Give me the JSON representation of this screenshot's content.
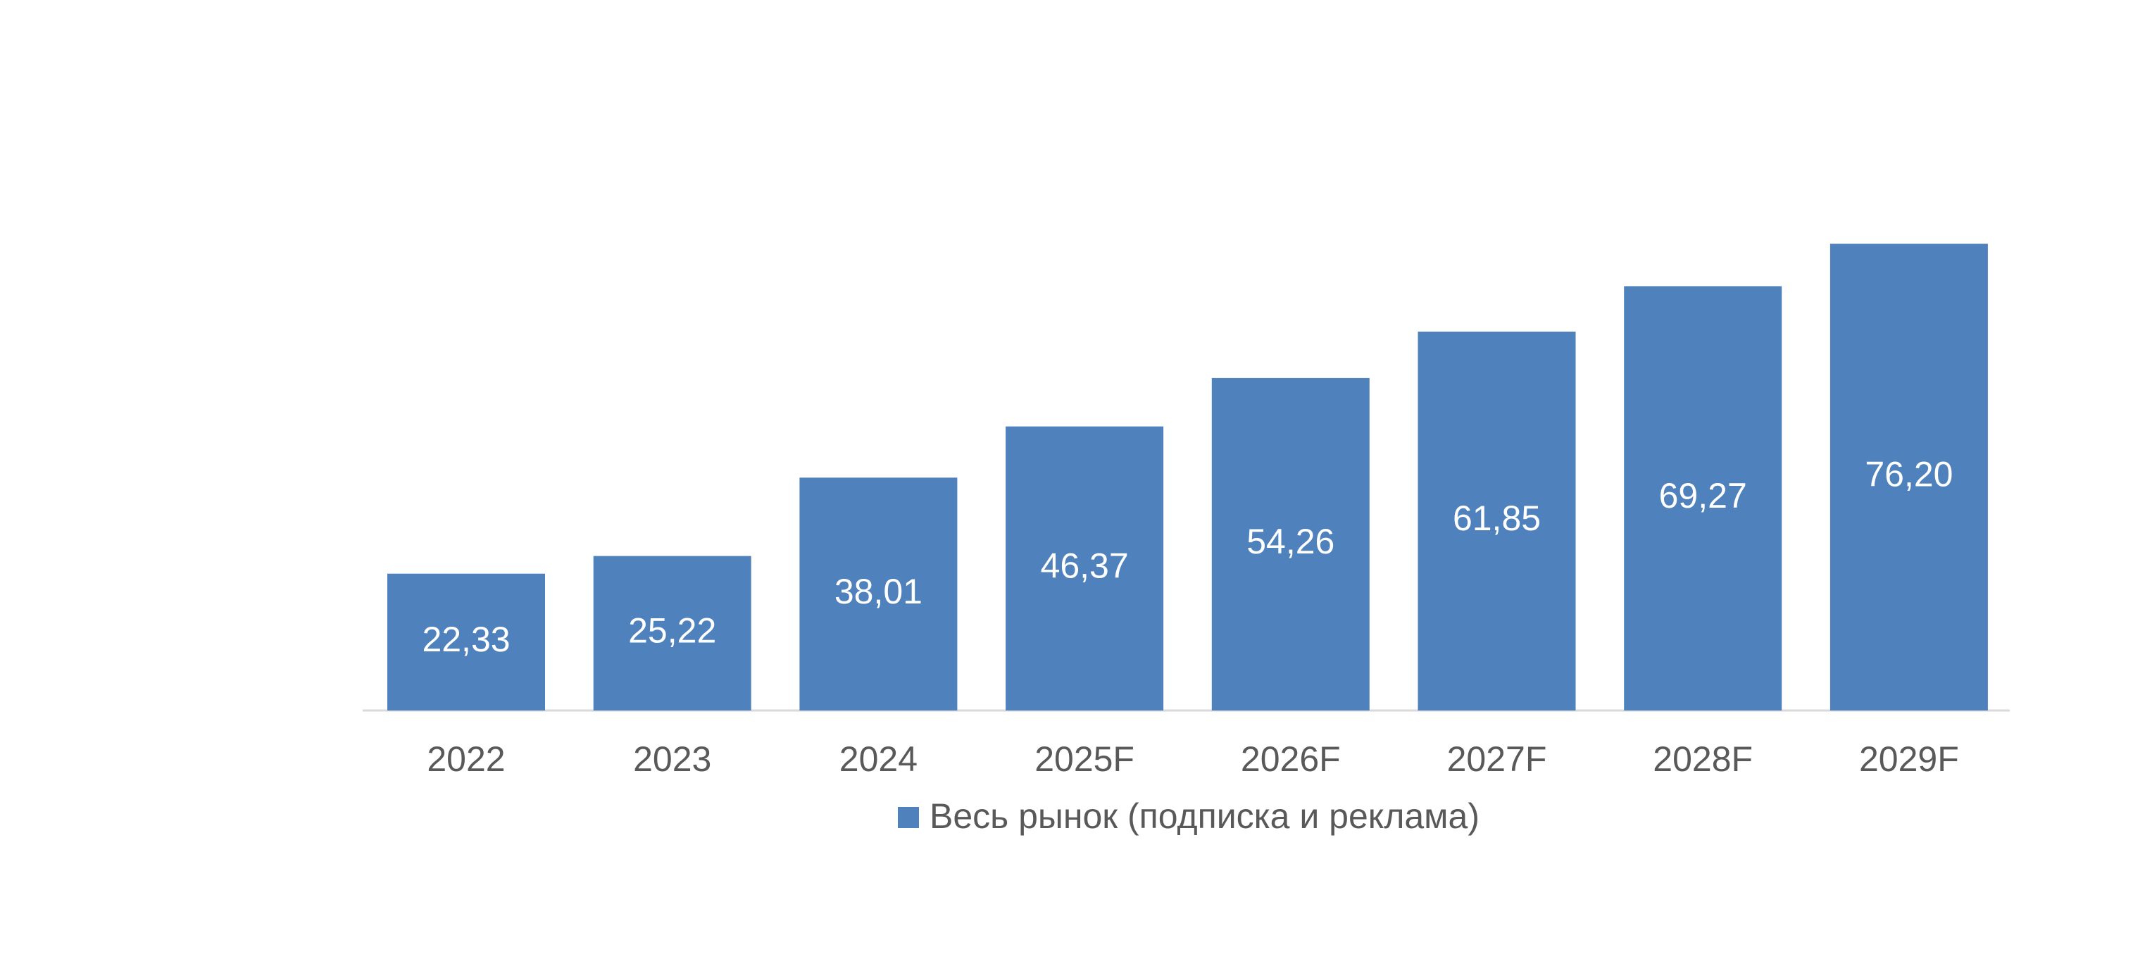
{
  "chart_data": {
    "type": "bar",
    "categories": [
      "2022",
      "2023",
      "2024",
      "2025F",
      "2026F",
      "2027F",
      "2028F",
      "2029F"
    ],
    "series": [
      {
        "name": "Весь рынок (подписка и реклама)",
        "values": [
          22.33,
          25.22,
          38.01,
          46.37,
          54.26,
          61.85,
          69.27,
          76.2
        ],
        "labels": [
          "22,33",
          "25,22",
          "38,01",
          "46,37",
          "54,26",
          "61,85",
          "69,27",
          "76,20"
        ],
        "color": "#4f81bd"
      }
    ],
    "ylim": [
      0,
      100
    ],
    "grid": false,
    "legend_position": "bottom",
    "axis_color": "#d9d9d9",
    "text_color": "#595959"
  }
}
